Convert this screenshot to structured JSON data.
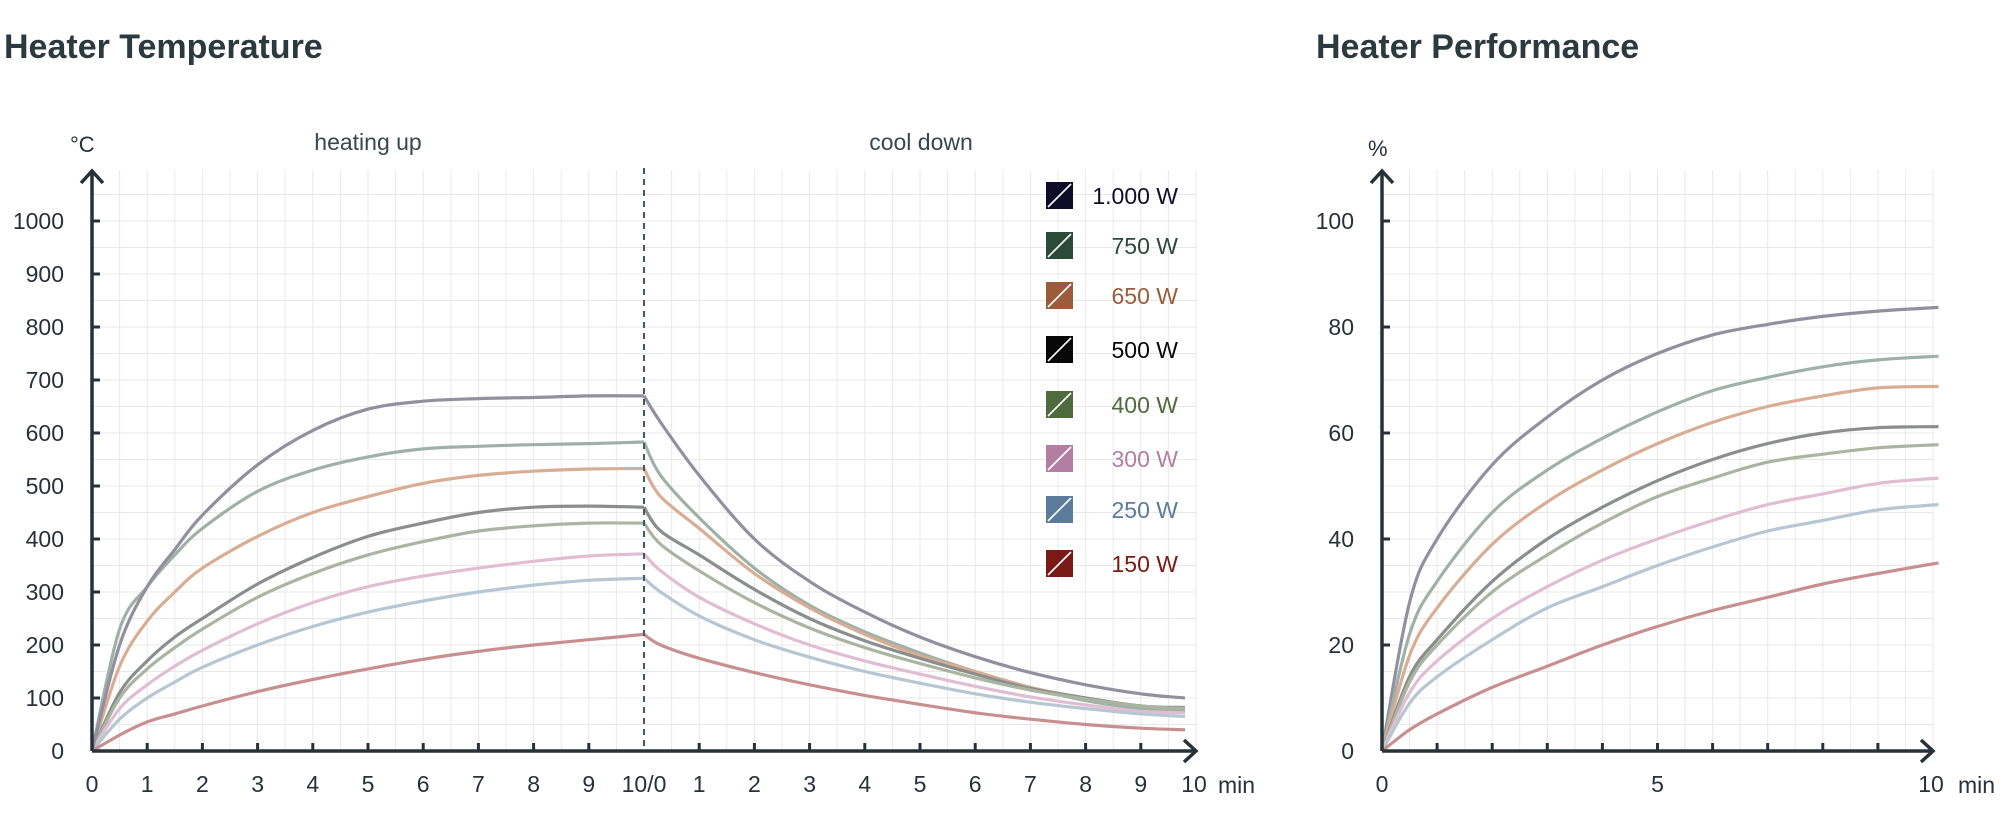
{
  "chart_data": [
    {
      "type": "line",
      "title": "Heater Temperature",
      "ylabel": "°C",
      "xunit": "min",
      "ylim": [
        0,
        1100
      ],
      "yticks": [
        0,
        100,
        200,
        300,
        400,
        500,
        600,
        700,
        800,
        900,
        1000
      ],
      "sections": [
        {
          "name": "heating up",
          "xlim": [
            0,
            10
          ],
          "xticks": [
            "0",
            "1",
            "2",
            "3",
            "4",
            "5",
            "6",
            "7",
            "8",
            "9"
          ]
        },
        {
          "name": "cool down",
          "xlim": [
            0,
            10
          ],
          "xticks": [
            "1",
            "2",
            "3",
            "4",
            "5",
            "6",
            "7",
            "8",
            "9",
            "10"
          ]
        }
      ],
      "divider_tick": "10/0",
      "grid": true,
      "legend_position": "top-right",
      "legend": [
        "1.000 W",
        "750 W",
        "650 W",
        "500 W",
        "400 W",
        "300 W",
        "250 W",
        "150 W"
      ],
      "series": [
        {
          "name": "750 W",
          "heating": {
            "x": [
              0,
              0.5,
              1,
              1.5,
              2,
              3,
              4,
              5,
              6,
              7,
              8,
              9,
              10
            ],
            "y": [
              0,
              230,
              310,
              370,
              420,
              490,
              530,
              555,
              570,
              575,
              578,
              580,
              583
            ]
          },
          "cooling": {
            "x": [
              0,
              0.3,
              1,
              2,
              3,
              4,
              5,
              6,
              7,
              8,
              9,
              9.8
            ],
            "y": [
              583,
              520,
              440,
              345,
              275,
              225,
              185,
              150,
              120,
              95,
              80,
              75
            ]
          }
        },
        {
          "name": "650 W",
          "heating": {
            "x": [
              0,
              0.5,
              1,
              1.5,
              2,
              3,
              4,
              5,
              6,
              7,
              8,
              9,
              10
            ],
            "y": [
              0,
              160,
              245,
              300,
              345,
              405,
              450,
              480,
              505,
              520,
              528,
              532,
              533
            ]
          },
          "cooling": {
            "x": [
              0,
              0.3,
              1,
              2,
              3,
              4,
              5,
              6,
              7,
              8,
              9,
              9.8
            ],
            "y": [
              533,
              480,
              420,
              335,
              270,
              220,
              180,
              150,
              120,
              100,
              85,
              80
            ]
          }
        },
        {
          "name": "500 W",
          "heating": {
            "x": [
              0,
              0.5,
              1,
              1.5,
              2,
              3,
              4,
              5,
              6,
              7,
              8,
              9,
              10
            ],
            "y": [
              0,
              110,
              170,
              215,
              250,
              315,
              365,
              405,
              430,
              450,
              460,
              462,
              460
            ]
          },
          "cooling": {
            "x": [
              0,
              0.3,
              1,
              2,
              3,
              4,
              5,
              6,
              7,
              8,
              9,
              9.8
            ],
            "y": [
              460,
              415,
              370,
              305,
              250,
              208,
              175,
              145,
              118,
              100,
              85,
              82
            ]
          }
        },
        {
          "name": "400 W",
          "heating": {
            "x": [
              0,
              0.5,
              1,
              1.5,
              2,
              3,
              4,
              5,
              6,
              7,
              8,
              9,
              10
            ],
            "y": [
              0,
              100,
              155,
              195,
              230,
              290,
              335,
              370,
              395,
              415,
              425,
              430,
              430
            ]
          },
          "cooling": {
            "x": [
              0,
              0.3,
              1,
              2,
              3,
              4,
              5,
              6,
              7,
              8,
              9,
              9.8
            ],
            "y": [
              430,
              390,
              340,
              280,
              232,
              195,
              165,
              138,
              115,
              98,
              85,
              80
            ]
          }
        },
        {
          "name": "300 W",
          "heating": {
            "x": [
              0,
              0.5,
              1,
              1.5,
              2,
              3,
              4,
              5,
              6,
              7,
              8,
              9,
              10
            ],
            "y": [
              0,
              80,
              125,
              160,
              190,
              240,
              280,
              310,
              330,
              345,
              358,
              368,
              372
            ]
          },
          "cooling": {
            "x": [
              0,
              0.3,
              1,
              2,
              3,
              4,
              5,
              6,
              7,
              8,
              9,
              9.8
            ],
            "y": [
              372,
              340,
              290,
              240,
              200,
              170,
              145,
              122,
              102,
              87,
              75,
              72
            ]
          }
        },
        {
          "name": "250 W",
          "heating": {
            "x": [
              0,
              0.5,
              1,
              1.5,
              2,
              3,
              4,
              5,
              6,
              7,
              8,
              9,
              10
            ],
            "y": [
              0,
              60,
              100,
              130,
              158,
              200,
              235,
              262,
              283,
              300,
              313,
              322,
              326
            ]
          },
          "cooling": {
            "x": [
              0,
              0.3,
              1,
              2,
              3,
              4,
              5,
              6,
              7,
              8,
              9,
              9.8
            ],
            "y": [
              326,
              300,
              255,
              210,
              177,
              150,
              128,
              108,
              92,
              80,
              70,
              65
            ]
          }
        },
        {
          "name": "150 W",
          "heating": {
            "x": [
              0,
              0.5,
              1,
              1.5,
              2,
              3,
              4,
              5,
              6,
              7,
              8,
              9,
              10
            ],
            "y": [
              0,
              30,
              55,
              70,
              85,
              112,
              135,
              155,
              173,
              188,
              200,
              210,
              220
            ]
          },
          "cooling": {
            "x": [
              0,
              0.3,
              1,
              2,
              3,
              4,
              5,
              6,
              7,
              8,
              9,
              9.8
            ],
            "y": [
              220,
              200,
              175,
              148,
              125,
              105,
              88,
              72,
              60,
              50,
              43,
              40
            ]
          }
        },
        {
          "name": "1.000 W",
          "heating": {
            "x": [
              0,
              0.5,
              1,
              1.5,
              2,
              3,
              4,
              5,
              6,
              7,
              8,
              9,
              10
            ],
            "y": [
              0,
              200,
              310,
              380,
              445,
              540,
              605,
              645,
              660,
              665,
              667,
              670,
              670
            ]
          },
          "cooling": {
            "x": [
              0,
              0.3,
              1,
              2,
              3,
              4,
              5,
              6,
              7,
              8,
              9,
              9.8
            ],
            "y": [
              670,
              620,
              520,
              400,
              320,
              262,
              215,
              178,
              148,
              125,
              108,
              100
            ]
          }
        }
      ]
    },
    {
      "type": "line",
      "title": "Heater Performance",
      "ylabel": "%",
      "xunit": "min",
      "xlim": [
        0,
        10
      ],
      "ylim": [
        0,
        110
      ],
      "xticks": [
        0,
        5,
        10
      ],
      "yticks": [
        0,
        20,
        40,
        60,
        80,
        100
      ],
      "grid": true,
      "series": [
        {
          "name": "1.000 W",
          "x": [
            0,
            0.5,
            1,
            2,
            3,
            4,
            5,
            6,
            7,
            8,
            9,
            10.1
          ],
          "y": [
            0,
            28,
            40,
            54,
            63,
            70,
            75,
            78.5,
            80.5,
            82,
            83,
            83.7
          ]
        },
        {
          "name": "750 W",
          "x": [
            0,
            0.5,
            1,
            2,
            3,
            4,
            5,
            6,
            7,
            8,
            9,
            10.1
          ],
          "y": [
            0,
            22,
            32,
            45,
            53,
            59,
            64,
            68,
            70.5,
            72.5,
            73.8,
            74.5
          ]
        },
        {
          "name": "650 W",
          "x": [
            0,
            0.5,
            1,
            2,
            3,
            4,
            5,
            6,
            7,
            8,
            9,
            10.1
          ],
          "y": [
            0,
            18,
            27,
            39,
            47,
            53,
            58,
            62,
            65,
            67,
            68.5,
            68.8
          ]
        },
        {
          "name": "500 W",
          "x": [
            0,
            0.5,
            1,
            2,
            3,
            4,
            5,
            6,
            7,
            8,
            9,
            10.1
          ],
          "y": [
            0,
            14,
            21,
            32,
            40,
            46,
            51,
            55,
            58,
            60,
            61,
            61.2
          ]
        },
        {
          "name": "400 W",
          "x": [
            0,
            0.5,
            1,
            2,
            3,
            4,
            5,
            6,
            7,
            8,
            9,
            10.1
          ],
          "y": [
            0,
            13,
            20,
            30,
            37,
            43,
            48,
            51.5,
            54.5,
            56,
            57.2,
            57.8
          ]
        },
        {
          "name": "300 W",
          "x": [
            0,
            0.5,
            1,
            2,
            3,
            4,
            5,
            6,
            7,
            8,
            9,
            10.1
          ],
          "y": [
            0,
            11,
            17,
            25,
            31,
            36,
            40,
            43.5,
            46.5,
            48.5,
            50.5,
            51.5
          ]
        },
        {
          "name": "250 W",
          "x": [
            0,
            0.5,
            1,
            2,
            3,
            4,
            5,
            6,
            7,
            8,
            9,
            10.1
          ],
          "y": [
            0,
            9,
            14,
            21,
            27,
            31,
            35,
            38.5,
            41.5,
            43.5,
            45.5,
            46.5
          ]
        },
        {
          "name": "150 W",
          "x": [
            0,
            0.5,
            1,
            2,
            3,
            4,
            5,
            6,
            7,
            8,
            9,
            10.1
          ],
          "y": [
            0,
            4,
            7,
            12,
            16,
            20,
            23.5,
            26.5,
            29,
            31.5,
            33.5,
            35.5
          ]
        }
      ]
    }
  ],
  "series_colors": {
    "1.000 W": "#928f9e",
    "750 W": "#9fb1a7",
    "650 W": "#d8ad94",
    "500 W": "#8a8e8d",
    "400 W": "#a9b5a1",
    "300 W": "#e1bdd3",
    "250 W": "#b6c6d2",
    "150 W": "#c88f90"
  },
  "legend_colors": {
    "1.000 W": "#0f0c2a",
    "750 W": "#2b4a38",
    "650 W": "#9a5c3a",
    "500 W": "#080808",
    "400 W": "#4f6a3c",
    "300 W": "#b27fa2",
    "250 W": "#5c7b9a",
    "150 W": "#7a1a16"
  },
  "axis_color": "#263238",
  "grid_color": "#e8e8e8"
}
